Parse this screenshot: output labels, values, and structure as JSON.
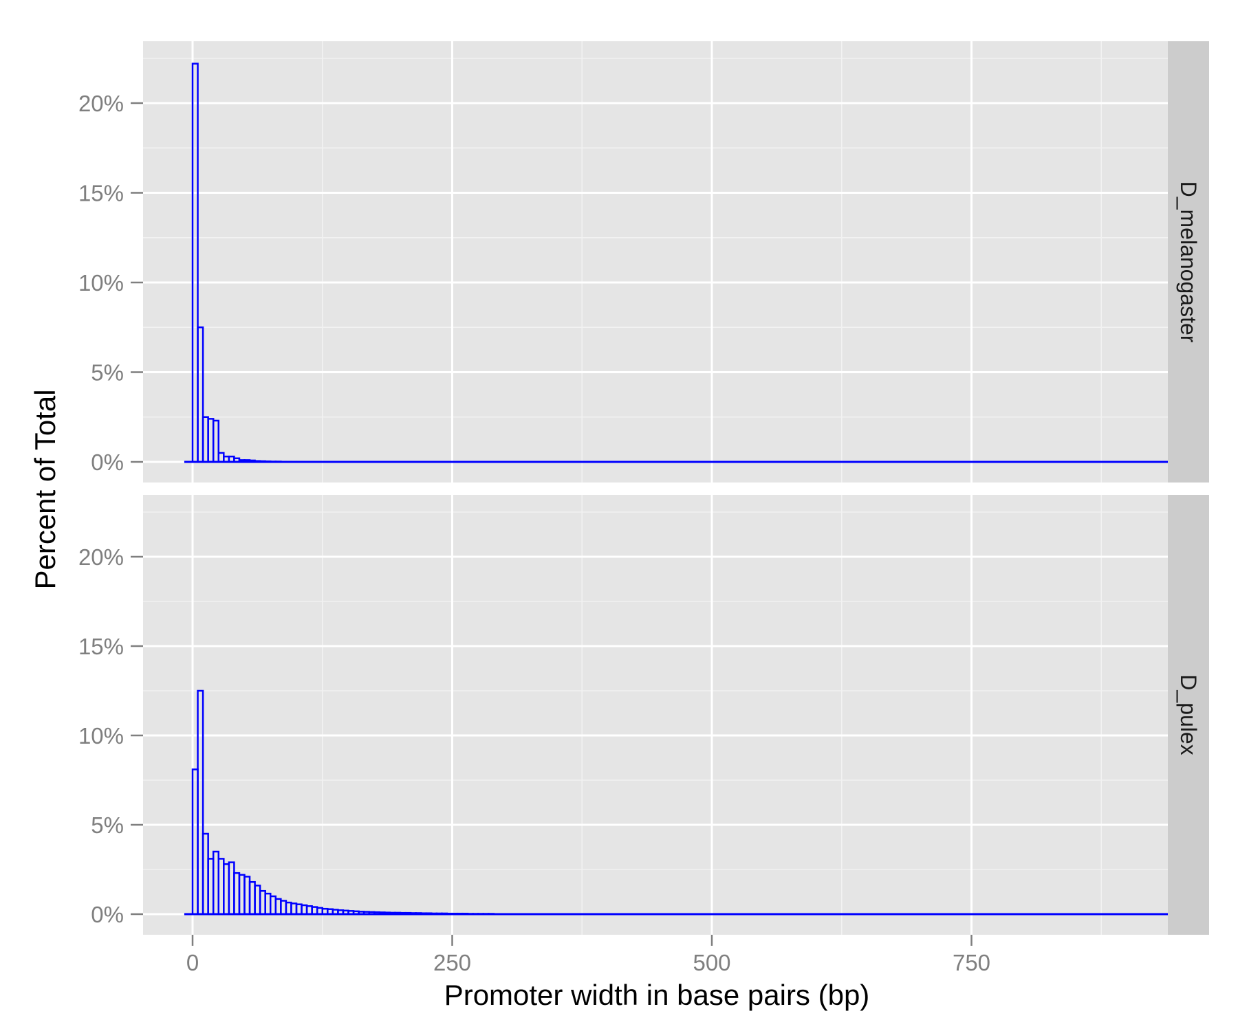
{
  "chart_data": {
    "type": "histogram",
    "xlabel": "Promoter width in base pairs (bp)",
    "ylabel": "Percent of Total",
    "xlim": [
      -10,
      950
    ],
    "ylim": [
      0,
      23
    ],
    "x_ticks": [
      0,
      250,
      500,
      750
    ],
    "x_tick_labels": [
      "0",
      "250",
      "500",
      "750"
    ],
    "y_ticks": [
      0,
      5,
      10,
      15,
      20
    ],
    "y_tick_labels": [
      "0%",
      "5%",
      "10%",
      "15%",
      "20%"
    ],
    "grid": true,
    "bin_width": 5,
    "bin_start": 0,
    "line_color": "#0000ff",
    "panel_background": "#e5e5e5",
    "strip_background": "#cccccc",
    "facet_position": "right",
    "panels": [
      {
        "label": "D_melanogaster",
        "values": [
          22.2,
          7.5,
          2.5,
          2.4,
          2.3,
          0.5,
          0.3,
          0.3,
          0.2,
          0.1,
          0.1,
          0.08,
          0.05,
          0.04,
          0.03,
          0.02,
          0.02,
          0.01,
          0.01,
          0.01,
          0.01
        ]
      },
      {
        "label": "D_pulex",
        "values": [
          8.1,
          12.5,
          4.5,
          3.1,
          3.5,
          3.1,
          2.8,
          2.9,
          2.3,
          2.2,
          2.1,
          1.8,
          1.6,
          1.3,
          1.15,
          1.0,
          0.85,
          0.75,
          0.65,
          0.6,
          0.55,
          0.5,
          0.45,
          0.4,
          0.35,
          0.3,
          0.28,
          0.25,
          0.22,
          0.2,
          0.18,
          0.16,
          0.14,
          0.13,
          0.12,
          0.11,
          0.1,
          0.09,
          0.08,
          0.08,
          0.07,
          0.07,
          0.06,
          0.06,
          0.05,
          0.05,
          0.04,
          0.04,
          0.04,
          0.03,
          0.03,
          0.03,
          0.03,
          0.02,
          0.02,
          0.02,
          0.02,
          0.02
        ]
      }
    ]
  }
}
